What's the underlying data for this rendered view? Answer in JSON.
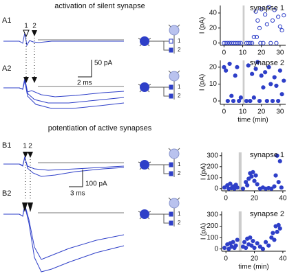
{
  "figure": {
    "title_a": "activation of silent synapse",
    "title_b": "potentiation of active synapses",
    "panels": [
      "A1",
      "A2",
      "B1",
      "B2"
    ],
    "stim_a": [
      "1",
      "2"
    ],
    "stim_b": [
      "1",
      "2"
    ],
    "scale_a": {
      "y": "50 pA",
      "x": "2 ms"
    },
    "scale_b": {
      "y": "100 pA",
      "x": "3 ms"
    },
    "diagram_inputs": [
      [
        "1",
        "2"
      ],
      [
        "1",
        "2"
      ],
      [
        "1",
        "2"
      ],
      [
        "1",
        "2"
      ]
    ]
  },
  "chart_data": [
    {
      "type": "scatter",
      "title": "synapse 1",
      "ylabel": "I (pA)",
      "marker": "open",
      "color": "#2e3fc8",
      "xlim": [
        -2,
        33
      ],
      "ylim": [
        -3,
        50
      ],
      "xticks": [
        0,
        10,
        20,
        30
      ],
      "yticks": [
        0,
        20,
        40
      ],
      "highlight": [
        10,
        11
      ],
      "x": [
        0,
        1,
        2,
        3,
        4,
        5,
        6,
        7,
        8,
        9,
        12,
        13,
        14,
        15,
        16,
        17,
        17.5,
        18,
        19,
        19.5,
        20,
        21,
        22,
        23,
        24,
        25,
        26,
        27,
        28,
        29,
        30,
        31,
        32
      ],
      "values": [
        0,
        0,
        0,
        0,
        0,
        0,
        0,
        0,
        0,
        0,
        0,
        0,
        0,
        0,
        8,
        42,
        8,
        30,
        20,
        0,
        45,
        0,
        38,
        25,
        48,
        0,
        30,
        44,
        0,
        35,
        22,
        17,
        37
      ]
    },
    {
      "type": "scatter",
      "title": "synapse 2",
      "ylabel": "I (pA)",
      "xlabel": "time (min)",
      "marker": "filled",
      "color": "#2e3fc8",
      "xlim": [
        -2,
        33
      ],
      "ylim": [
        -2,
        24
      ],
      "xticks": [
        0,
        10,
        20,
        30
      ],
      "yticks": [
        0,
        10,
        20
      ],
      "highlight": [
        10,
        11
      ],
      "x": [
        0,
        1,
        2,
        3,
        4,
        5,
        6,
        7,
        8,
        9,
        12,
        13,
        14,
        15,
        16,
        17,
        18,
        19,
        20,
        21,
        22,
        23,
        24,
        25,
        26,
        27,
        28,
        29,
        30,
        31,
        32
      ],
      "values": [
        20,
        18,
        0,
        22,
        3,
        0,
        15,
        20,
        0,
        2,
        0,
        21,
        0,
        16,
        2,
        19,
        23,
        0,
        15,
        8,
        17,
        0,
        20,
        10,
        0,
        14,
        9,
        0,
        18,
        4,
        12
      ]
    },
    {
      "type": "scatter",
      "title": "synapse 1",
      "ylabel": "I (pA)",
      "marker": "filled",
      "color": "#2e3fc8",
      "xlim": [
        -3,
        42
      ],
      "ylim": [
        -20,
        330
      ],
      "xticks": [
        0,
        20,
        40
      ],
      "yticks": [
        0,
        100,
        200,
        300
      ],
      "highlight": [
        9,
        11
      ],
      "x": [
        -1,
        1,
        2,
        3,
        4,
        5,
        6,
        7,
        8,
        12,
        14,
        15,
        16,
        17,
        18,
        19,
        20,
        21,
        22,
        24,
        26,
        28,
        30,
        32,
        34,
        35,
        36,
        37,
        38,
        39
      ],
      "values": [
        10,
        30,
        0,
        45,
        5,
        20,
        0,
        35,
        10,
        0,
        60,
        30,
        90,
        140,
        110,
        150,
        70,
        120,
        40,
        0,
        10,
        0,
        5,
        0,
        20,
        120,
        300,
        60,
        250,
        10
      ]
    },
    {
      "type": "scatter",
      "title": "synapse 2",
      "ylabel": "I (pA)",
      "xlabel": "time (min)",
      "marker": "filled",
      "color": "#2e3fc8",
      "xlim": [
        -3,
        42
      ],
      "ylim": [
        -20,
        330
      ],
      "xticks": [
        0,
        20,
        40
      ],
      "yticks": [
        0,
        100,
        200,
        300
      ],
      "highlight": [
        9,
        11
      ],
      "x": [
        -1,
        1,
        2,
        3,
        4,
        5,
        6,
        7,
        8,
        12,
        13,
        14,
        15,
        16,
        17,
        18,
        19,
        20,
        22,
        24,
        26,
        28,
        30,
        32,
        33,
        34,
        35,
        36,
        37,
        38
      ],
      "values": [
        10,
        40,
        0,
        50,
        20,
        60,
        10,
        30,
        80,
        20,
        60,
        10,
        90,
        40,
        100,
        30,
        70,
        10,
        50,
        20,
        0,
        60,
        30,
        100,
        140,
        80,
        200,
        150,
        210,
        180
      ]
    }
  ]
}
